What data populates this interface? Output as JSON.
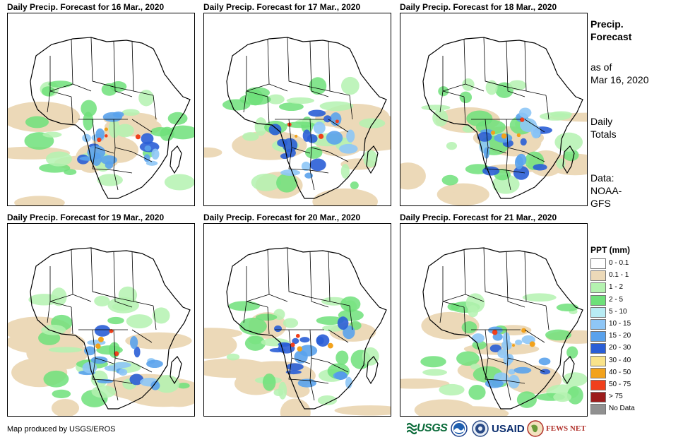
{
  "panels": [
    {
      "title": "Daily Precip. Forecast for 16 Mar., 2020"
    },
    {
      "title": "Daily Precip. Forecast for 17 Mar., 2020"
    },
    {
      "title": "Daily Precip. Forecast for 18 Mar., 2020"
    },
    {
      "title": "Daily Precip. Forecast for 19 Mar., 2020"
    },
    {
      "title": "Daily Precip. Forecast for 20 Mar., 2020"
    },
    {
      "title": "Daily Precip. Forecast for 21 Mar., 2020"
    }
  ],
  "sidebar": {
    "title_line1": "Precip.",
    "title_line2": "Forecast",
    "asof_line1": "as of",
    "asof_line2": "Mar 16, 2020",
    "daily_line1": "Daily",
    "daily_line2": "Totals",
    "data_line1": "Data:",
    "data_line2": "NOAA-",
    "data_line3": "GFS"
  },
  "legend": {
    "title": "PPT (mm)",
    "items": [
      {
        "label": "0 - 0.1",
        "color": "#ffffff"
      },
      {
        "label": "0.1 - 1",
        "color": "#ecd9b8"
      },
      {
        "label": "1 - 2",
        "color": "#b4f2b0"
      },
      {
        "label": "2 - 5",
        "color": "#6ee07a"
      },
      {
        "label": "5 - 10",
        "color": "#b8ecf4"
      },
      {
        "label": "10 - 15",
        "color": "#8ec6f6"
      },
      {
        "label": "15 - 20",
        "color": "#5aa2ec"
      },
      {
        "label": "20 - 30",
        "color": "#2a5ed6"
      },
      {
        "label": "30 - 40",
        "color": "#f9e38a"
      },
      {
        "label": "40 - 50",
        "color": "#f2a21c"
      },
      {
        "label": "50 - 75",
        "color": "#f0401c"
      },
      {
        "label": "> 75",
        "color": "#9c1c1c"
      },
      {
        "label": "No Data",
        "color": "#909090"
      }
    ]
  },
  "credit": "Map produced by USGS/EROS",
  "logos": {
    "usgs": "USGS",
    "usaid": "USAID",
    "fews": "FEWS NET"
  }
}
